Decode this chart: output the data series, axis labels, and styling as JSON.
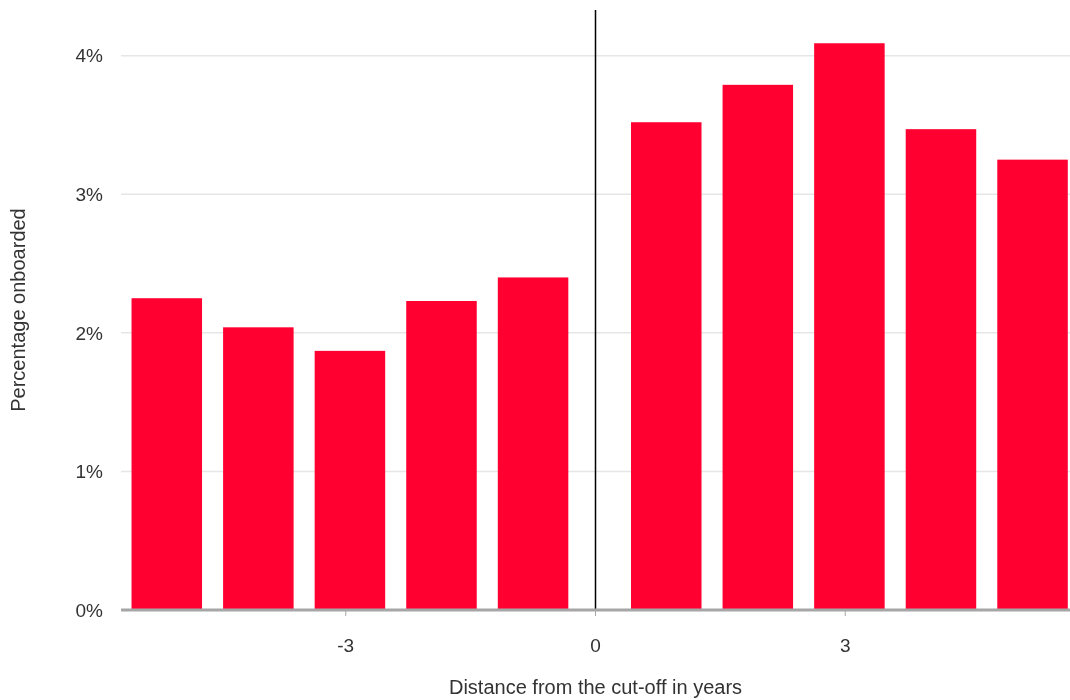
{
  "chart_data": {
    "type": "bar",
    "xlabel": "Distance from the cut-off in years",
    "ylabel": "Percentage onboarded",
    "x": [
      -5.15,
      -4.05,
      -2.95,
      -1.85,
      -0.75,
      0.85,
      1.95,
      3.05,
      4.15,
      5.25
    ],
    "values": [
      2.25,
      2.04,
      1.87,
      2.23,
      2.4,
      3.52,
      3.79,
      4.09,
      3.47,
      3.25
    ],
    "color": "#ff0030",
    "xlim": [
      -5.7,
      5.7
    ],
    "xticks": [
      -3,
      0,
      3
    ],
    "ylim": [
      0,
      4.33
    ],
    "yticks": [
      {
        "value": 0,
        "label": "0%"
      },
      {
        "value": 1,
        "label": "1%"
      },
      {
        "value": 2,
        "label": "2%"
      },
      {
        "value": 3,
        "label": "3%"
      },
      {
        "value": 4,
        "label": "4%"
      }
    ],
    "grid": "y",
    "ref_lines": [
      {
        "axis": "x",
        "value": 0,
        "color": "#000000"
      }
    ]
  }
}
